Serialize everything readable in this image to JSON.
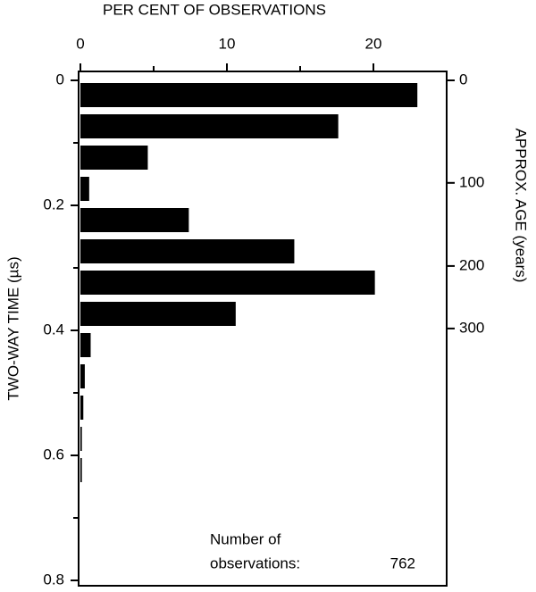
{
  "chart_data": {
    "type": "hbar-histogram",
    "title": "PER CENT OF OBSERVATIONS",
    "ylabel": "TWO-WAY TIME (µs)",
    "y2label": "APPROX. AGE (years)",
    "bins": [
      0,
      0.05,
      0.1,
      0.15,
      0.2,
      0.25,
      0.3,
      0.35,
      0.4,
      0.45,
      0.5,
      0.55,
      0.6,
      0.65
    ],
    "values": [
      23.0,
      17.6,
      4.6,
      0.6,
      7.4,
      14.6,
      20.1,
      10.6,
      0.7,
      0.3,
      0.2,
      0.1,
      0.1
    ],
    "color": "#000000",
    "xlim": [
      0,
      25
    ],
    "xticks": [
      0,
      10,
      20
    ],
    "xminor": [
      5,
      15
    ],
    "ylim": [
      0,
      0.8
    ],
    "yticks": [
      0,
      {
        "value": 0.2,
        "label": "0.2"
      },
      {
        "value": 0.4,
        "label": "0.4"
      },
      {
        "value": 0.6,
        "label": "0.6"
      },
      {
        "value": 0.8,
        "label": "0.8"
      }
    ],
    "yminor": [
      0.1,
      0.3,
      0.5,
      0.7
    ],
    "y2ticks": [
      0,
      100,
      200,
      300
    ],
    "y2tick_time": [
      0,
      0.164,
      0.297,
      0.397
    ],
    "annotation": [
      "Number of",
      "observations:"
    ],
    "n_observations": 762
  }
}
